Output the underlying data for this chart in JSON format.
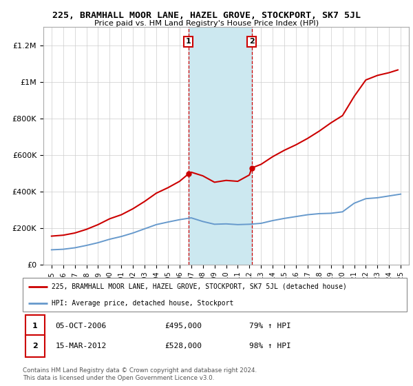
{
  "title": "225, BRAMHALL MOOR LANE, HAZEL GROVE, STOCKPORT, SK7 5JL",
  "subtitle": "Price paid vs. HM Land Registry's House Price Index (HPI)",
  "legend_line1": "225, BRAMHALL MOOR LANE, HAZEL GROVE, STOCKPORT, SK7 5JL (detached house)",
  "legend_line2": "HPI: Average price, detached house, Stockport",
  "annotation1_label": "1",
  "annotation1_date": "05-OCT-2006",
  "annotation1_price": "£495,000",
  "annotation1_hpi": "79% ↑ HPI",
  "annotation2_label": "2",
  "annotation2_date": "15-MAR-2012",
  "annotation2_price": "£528,000",
  "annotation2_hpi": "98% ↑ HPI",
  "footer": "Contains HM Land Registry data © Crown copyright and database right 2024.\nThis data is licensed under the Open Government Licence v3.0.",
  "property_color": "#cc0000",
  "hpi_color": "#6699cc",
  "highlight_color": "#cce8f0",
  "annotation_box_color": "#cc0000",
  "ylim": [
    0,
    1300000
  ],
  "yticks": [
    0,
    200000,
    400000,
    600000,
    800000,
    1000000,
    1200000
  ],
  "ytick_labels": [
    "£0",
    "£200K",
    "£400K",
    "£600K",
    "£800K",
    "£1M",
    "£1.2M"
  ],
  "sale1_year": 2006.75,
  "sale2_year": 2012.2,
  "sale1_value": 495000,
  "sale2_value": 528000,
  "years_hpi": [
    1995,
    1996,
    1997,
    1998,
    1999,
    2000,
    2001,
    2002,
    2003,
    2004,
    2005,
    2006,
    2007,
    2008,
    2009,
    2010,
    2011,
    2012,
    2013,
    2014,
    2015,
    2016,
    2017,
    2018,
    2019,
    2020,
    2021,
    2022,
    2023,
    2024,
    2025
  ],
  "hpi_values": [
    80000,
    83000,
    91000,
    104000,
    119000,
    138000,
    153000,
    172000,
    195000,
    218000,
    232000,
    245000,
    255000,
    235000,
    220000,
    222000,
    218000,
    220000,
    225000,
    240000,
    252000,
    262000,
    272000,
    278000,
    280000,
    288000,
    335000,
    360000,
    365000,
    375000,
    385000
  ],
  "years_prop": [
    1995,
    1996,
    1997,
    1998,
    1999,
    2000,
    2001,
    2002,
    2003,
    2004,
    2005,
    2006,
    2006.75,
    2007,
    2008,
    2009,
    2010,
    2011,
    2012,
    2012.2,
    2013,
    2014,
    2015,
    2016,
    2017,
    2018,
    2019,
    2020,
    2021,
    2022,
    2023,
    2024,
    2024.75
  ],
  "prop_values": [
    155000,
    160000,
    172000,
    192000,
    218000,
    250000,
    272000,
    305000,
    345000,
    390000,
    420000,
    455000,
    495000,
    505000,
    485000,
    450000,
    460000,
    455000,
    490000,
    528000,
    548000,
    590000,
    625000,
    655000,
    690000,
    730000,
    775000,
    815000,
    920000,
    1010000,
    1035000,
    1050000,
    1065000
  ]
}
